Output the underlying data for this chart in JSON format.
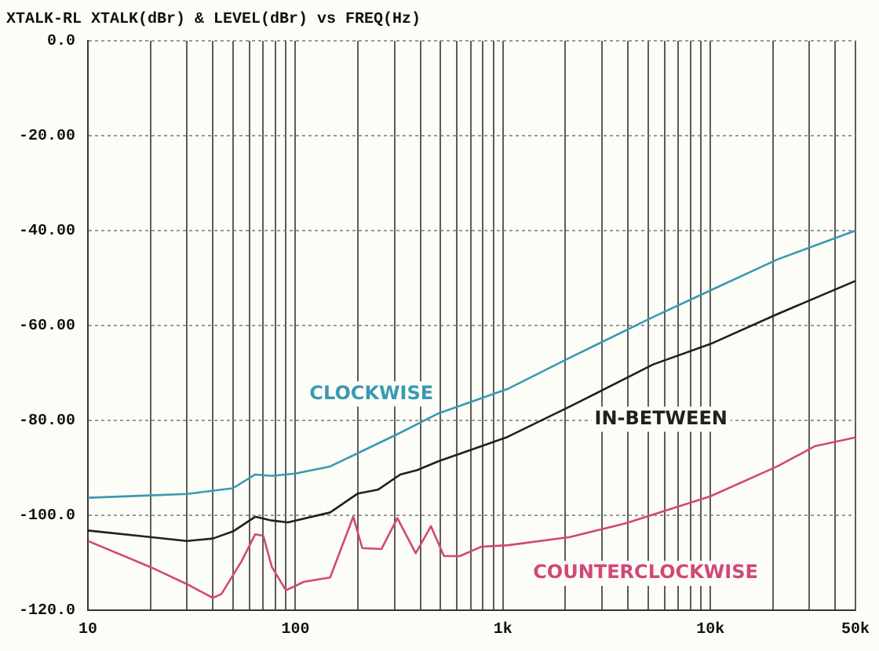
{
  "chart_data": {
    "type": "line",
    "title": "XTALK-RL XTALK(dBr) & LEVEL(dBr) vs FREQ(Hz)",
    "xlim": [
      10,
      50000
    ],
    "xticks": [
      10,
      {
        "value": 20,
        "label": null
      },
      {
        "value": 30,
        "label": null
      },
      {
        "value": 40,
        "label": null
      },
      {
        "value": 50,
        "label": null
      },
      {
        "value": 60,
        "label": null
      },
      {
        "value": 70,
        "label": null
      },
      {
        "value": 80,
        "label": null
      },
      {
        "value": 90,
        "label": null
      },
      100,
      {
        "value": 200,
        "label": null
      },
      {
        "value": 300,
        "label": null
      },
      {
        "value": 400,
        "label": null
      },
      {
        "value": 500,
        "label": null
      },
      {
        "value": 600,
        "label": null
      },
      {
        "value": 700,
        "label": null
      },
      {
        "value": 800,
        "label": null
      },
      {
        "value": 900,
        "label": null
      },
      {
        "value": 1000,
        "label": "1k"
      },
      {
        "value": 2000,
        "label": null
      },
      {
        "value": 3000,
        "label": null
      },
      {
        "value": 4000,
        "label": null
      },
      {
        "value": 5000,
        "label": null
      },
      {
        "value": 6000,
        "label": null
      },
      {
        "value": 7000,
        "label": null
      },
      {
        "value": 8000,
        "label": null
      },
      {
        "value": 9000,
        "label": null
      },
      {
        "value": 10000,
        "label": "10k"
      },
      {
        "value": 20000,
        "label": null
      },
      {
        "value": 30000,
        "label": null
      },
      {
        "value": 40000,
        "label": null
      },
      {
        "value": 50000,
        "label": "50k"
      }
    ],
    "ylim": [
      -120,
      0
    ],
    "yticks": [
      {
        "value": -120,
        "label": "-120.0"
      },
      {
        "value": -100,
        "label": "-100.0"
      },
      {
        "value": -80,
        "label": "-80.00"
      },
      {
        "value": -60,
        "label": "-60.00"
      },
      {
        "value": -40,
        "label": "-40.00"
      },
      {
        "value": -20,
        "label": "-20.00"
      },
      {
        "value": 0,
        "label": "0.0"
      }
    ],
    "log": "x",
    "grid": true,
    "legend": false,
    "marker": "none",
    "line_style": "solid",
    "series": [
      {
        "name": "CLOCKWISE",
        "color": "#3a9ab0",
        "x": [
          10,
          20,
          30,
          50,
          64,
          77,
          100,
          147,
          200,
          320,
          490,
          1050,
          2100,
          5300,
          10000,
          21000,
          50000
        ],
        "values": [
          -96.3,
          -95.8,
          -95.5,
          -94.3,
          -91.4,
          -91.7,
          -91.2,
          -89.7,
          -86.9,
          -82.6,
          -78.5,
          -73.4,
          -66.8,
          -58.2,
          -52.6,
          -46.1,
          -40
        ]
      },
      {
        "name": "IN-BETWEEN",
        "color": "#202020",
        "x": [
          10,
          20,
          30,
          40,
          50,
          64,
          77,
          92,
          100,
          147,
          200,
          250,
          320,
          385,
          490,
          1050,
          2100,
          5300,
          10000,
          21000,
          50000
        ],
        "values": [
          -103.2,
          -104.6,
          -105.4,
          -104.9,
          -103.4,
          -100.3,
          -101.1,
          -101.5,
          -101.1,
          -99.4,
          -95.4,
          -94.6,
          -91.4,
          -90.5,
          -88.6,
          -83.5,
          -77.1,
          -68.2,
          -63.9,
          -57.6,
          -50.6
        ]
      },
      {
        "name": "COUNTERCLOCKWISE",
        "color": "#d04878",
        "x": [
          10,
          20,
          30,
          40,
          44,
          55,
          64,
          70,
          77,
          90,
          110,
          147,
          190,
          210,
          260,
          310,
          380,
          450,
          520,
          620,
          790,
          1060,
          2100,
          3900,
          10000,
          21000,
          32000,
          50000
        ],
        "values": [
          -105.4,
          -110.9,
          -114.5,
          -117.4,
          -116.6,
          -109.7,
          -104,
          -104.3,
          -110.9,
          -115.8,
          -114,
          -113.1,
          -100.3,
          -106.9,
          -107.1,
          -100.6,
          -108,
          -102.3,
          -108.6,
          -108.6,
          -106.6,
          -106.3,
          -104.6,
          -101.7,
          -96,
          -89.7,
          -85.4,
          -83.6
        ]
      }
    ]
  }
}
